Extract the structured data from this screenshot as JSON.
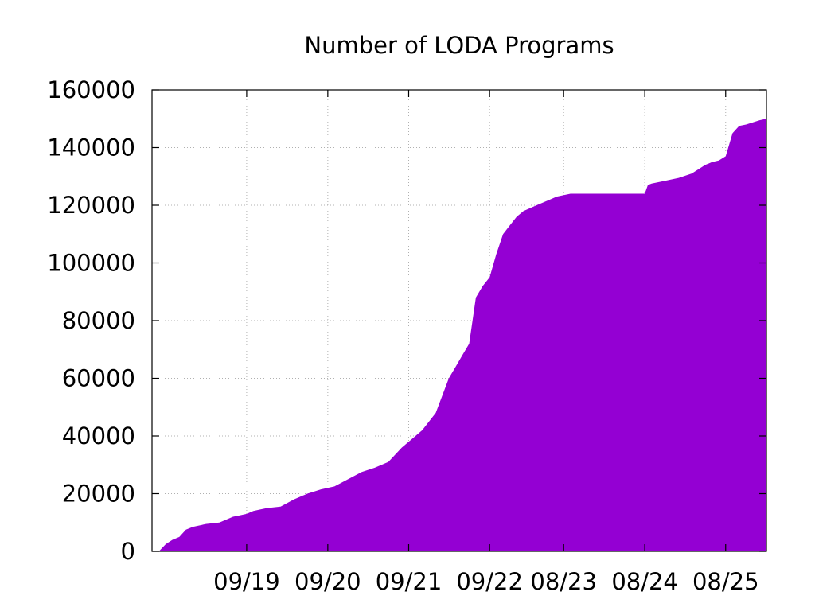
{
  "chart_data": {
    "type": "area",
    "title": "Number of LODA Programs",
    "xlabel": "",
    "ylabel": "",
    "ylim": [
      0,
      160000
    ],
    "xlim": [
      "2018-07-01",
      "2026-02-01"
    ],
    "grid": true,
    "color": "#9400d3",
    "y_ticks": [
      {
        "value": 0,
        "label": "0"
      },
      {
        "value": 20000,
        "label": "20000"
      },
      {
        "value": 40000,
        "label": "40000"
      },
      {
        "value": 60000,
        "label": "60000"
      },
      {
        "value": 80000,
        "label": "80000"
      },
      {
        "value": 100000,
        "label": "100000"
      },
      {
        "value": 120000,
        "label": "120000"
      },
      {
        "value": 140000,
        "label": "140000"
      },
      {
        "value": 160000,
        "label": "160000"
      }
    ],
    "x_ticks": [
      {
        "date": "2019-09-01",
        "label": "09/19"
      },
      {
        "date": "2020-09-01",
        "label": "09/20"
      },
      {
        "date": "2021-09-01",
        "label": "09/21"
      },
      {
        "date": "2022-09-01",
        "label": "09/22"
      },
      {
        "date": "2023-08-01",
        "label": "08/23"
      },
      {
        "date": "2024-08-01",
        "label": "08/24"
      },
      {
        "date": "2025-08-01",
        "label": "08/25"
      }
    ],
    "series": [
      {
        "dates": [
          "2018-08-01",
          "2018-09-01",
          "2018-10-01",
          "2018-11-01",
          "2018-12-01",
          "2019-01-01",
          "2019-02-01",
          "2019-03-01",
          "2019-05-01",
          "2019-07-01",
          "2019-08-01",
          "2019-09-01",
          "2019-10-01",
          "2019-11-01",
          "2019-12-01",
          "2020-02-01",
          "2020-04-01",
          "2020-06-01",
          "2020-08-01",
          "2020-10-01",
          "2020-12-01",
          "2021-02-01",
          "2021-04-01",
          "2021-06-01",
          "2021-08-01",
          "2021-09-01",
          "2021-11-01",
          "2022-01-01",
          "2022-03-01",
          "2022-04-01",
          "2022-05-01",
          "2022-06-01",
          "2022-07-01",
          "2022-08-01",
          "2022-09-01",
          "2022-10-01",
          "2022-11-01",
          "2022-12-01",
          "2023-01-01",
          "2023-02-01",
          "2023-04-01",
          "2023-06-01",
          "2023-07-01",
          "2023-09-01",
          "2023-12-01",
          "2024-03-01",
          "2024-06-01",
          "2024-08-01",
          "2024-08-15",
          "2024-09-01",
          "2024-11-01",
          "2025-01-01",
          "2025-03-01",
          "2025-05-01",
          "2025-06-01",
          "2025-07-01",
          "2025-08-01",
          "2025-09-01",
          "2025-10-01",
          "2025-11-01",
          "2026-01-01",
          "2026-02-01"
        ],
        "values": [
          0,
          2500,
          4000,
          5000,
          7500,
          8500,
          9000,
          9500,
          10000,
          12000,
          12500,
          13000,
          14000,
          14500,
          15000,
          15500,
          18000,
          20000,
          21500,
          22500,
          25000,
          27500,
          29000,
          31000,
          36000,
          38000,
          42000,
          48000,
          60000,
          64000,
          68000,
          72000,
          88000,
          92000,
          95000,
          103000,
          110000,
          113000,
          116000,
          118000,
          120000,
          122000,
          123000,
          124000,
          124000,
          124000,
          124000,
          124000,
          127000,
          127500,
          128500,
          129500,
          131000,
          134000,
          135000,
          135500,
          137000,
          145000,
          147500,
          148000,
          149500,
          150000
        ]
      }
    ]
  }
}
